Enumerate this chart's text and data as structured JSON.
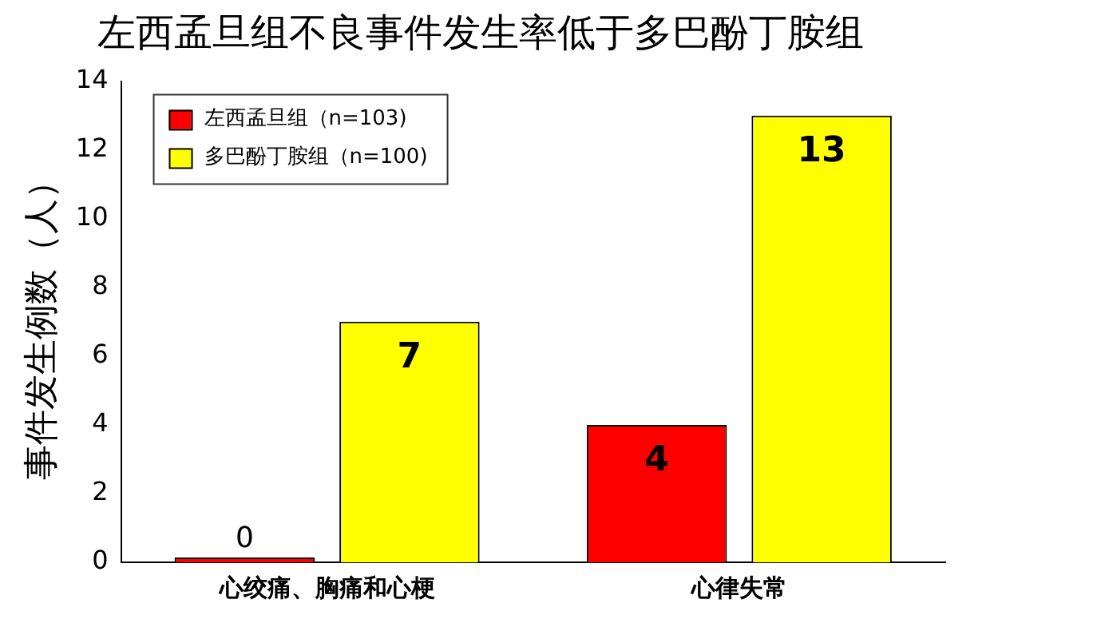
{
  "chart_data": {
    "type": "bar",
    "title": "左西孟旦组不良事件发生率低于多巴酚丁胺组",
    "ylabel": "事件发生例数（人）",
    "categories": [
      "心绞痛、胸痛和心梗",
      "心律失常"
    ],
    "series": [
      {
        "name": "左西孟旦组（n=103)",
        "color": "#ff0000",
        "values": [
          0,
          4
        ]
      },
      {
        "name": "多巴酚丁胺组（n=100)",
        "color": "#ffff00",
        "values": [
          7,
          13
        ]
      }
    ],
    "ylim": [
      0,
      14
    ],
    "yticks": [
      0,
      2,
      4,
      6,
      8,
      10,
      12,
      14
    ],
    "grid": false,
    "legend": "top left",
    "data_labels": true
  }
}
